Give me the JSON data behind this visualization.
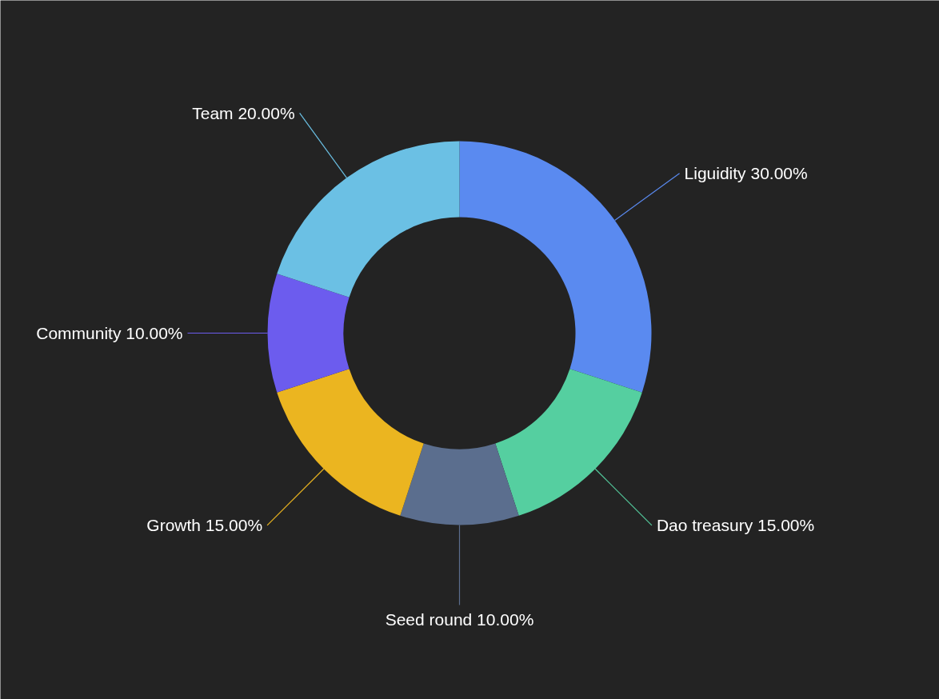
{
  "chart_data": {
    "type": "donut",
    "categories": [
      "Liguidity",
      "Dao treasury",
      "Seed round",
      "Growth",
      "Community",
      "Team"
    ],
    "values": [
      30,
      15,
      10,
      15,
      10,
      20
    ],
    "value_labels": [
      "30.00%",
      "15.00%",
      "10.00%",
      "15.00%",
      "10.00%",
      "20.00%"
    ],
    "colors": [
      "#5a8af0",
      "#55cfa0",
      "#5b6e8e",
      "#ebb520",
      "#6c5cee",
      "#6bc0e4"
    ],
    "legend": false
  }
}
